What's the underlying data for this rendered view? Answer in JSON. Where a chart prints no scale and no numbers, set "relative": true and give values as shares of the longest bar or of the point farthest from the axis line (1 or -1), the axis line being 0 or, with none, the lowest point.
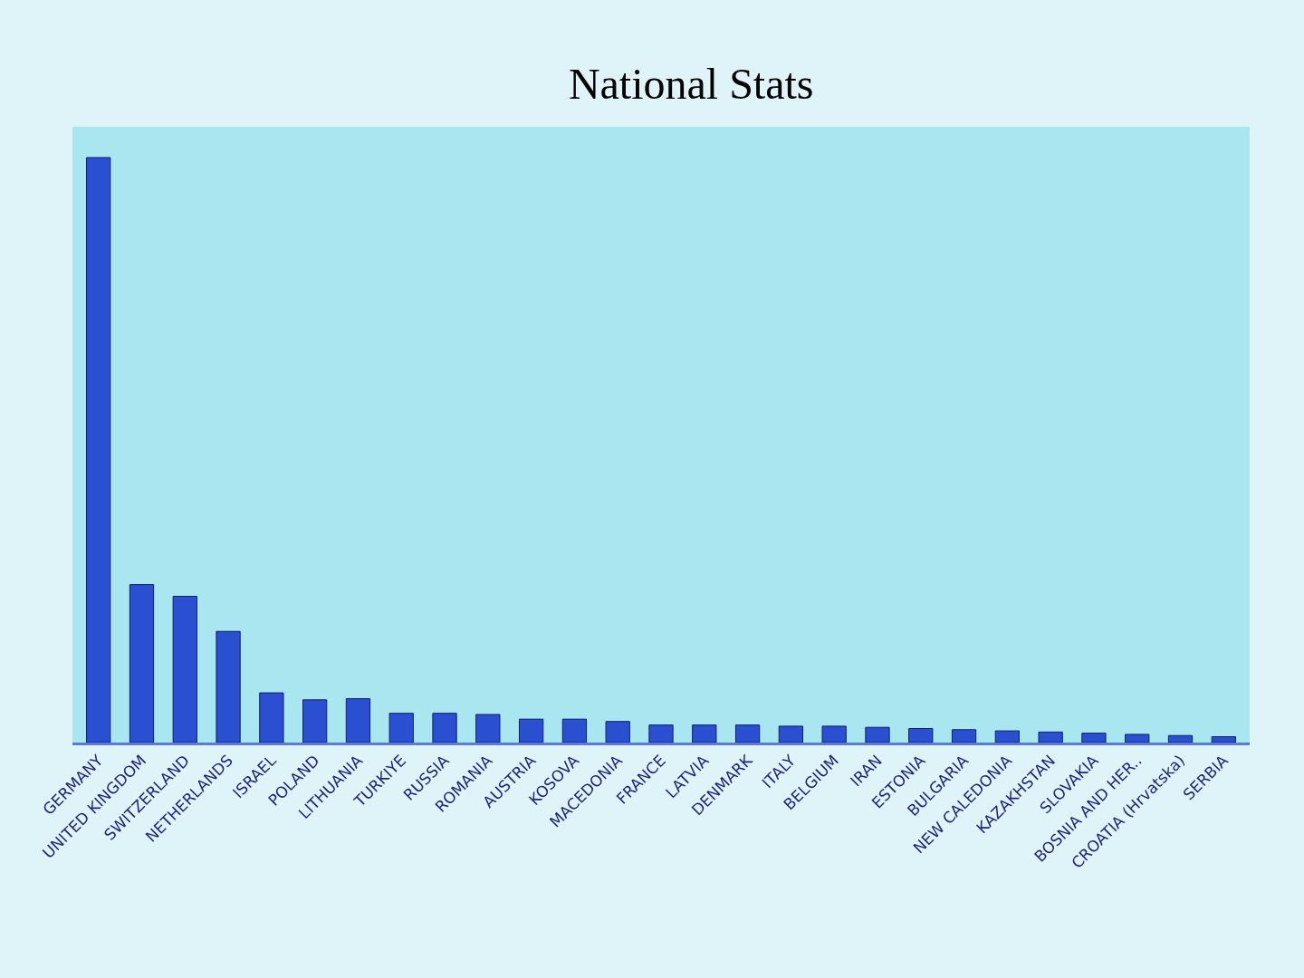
{
  "chart_data": {
    "type": "bar",
    "title": "National Stats",
    "relative": true,
    "color": "#2a4fd0",
    "grid": false,
    "categories": [
      "GERMANY",
      "UNITED KINGDOM",
      "SWITZERLAND",
      "NETHERLANDS",
      "ISRAEL",
      "POLAND",
      "LITHUANIA",
      "TURKIYE",
      "RUSSIA",
      "ROMANIA",
      "AUSTRIA",
      "KOSOVA",
      "MACEDONIA",
      "FRANCE",
      "LATVIA",
      "DENMARK",
      "ITALY",
      "BELGIUM",
      "IRAN",
      "ESTONIA",
      "BULGARIA",
      "NEW CALEDONIA",
      "KAZAKHSTAN",
      "SLOVAKIA",
      "BOSNIA AND HER..",
      "CROATIA (Hrvatska)",
      "SERBIA"
    ],
    "values": [
      1,
      0.27,
      0.25,
      0.19,
      0.085,
      0.073,
      0.075,
      0.05,
      0.05,
      0.048,
      0.04,
      0.04,
      0.036,
      0.03,
      0.03,
      0.03,
      0.028,
      0.028,
      0.026,
      0.024,
      0.022,
      0.02,
      0.018,
      0.016,
      0.014,
      0.012,
      0.01
    ]
  }
}
